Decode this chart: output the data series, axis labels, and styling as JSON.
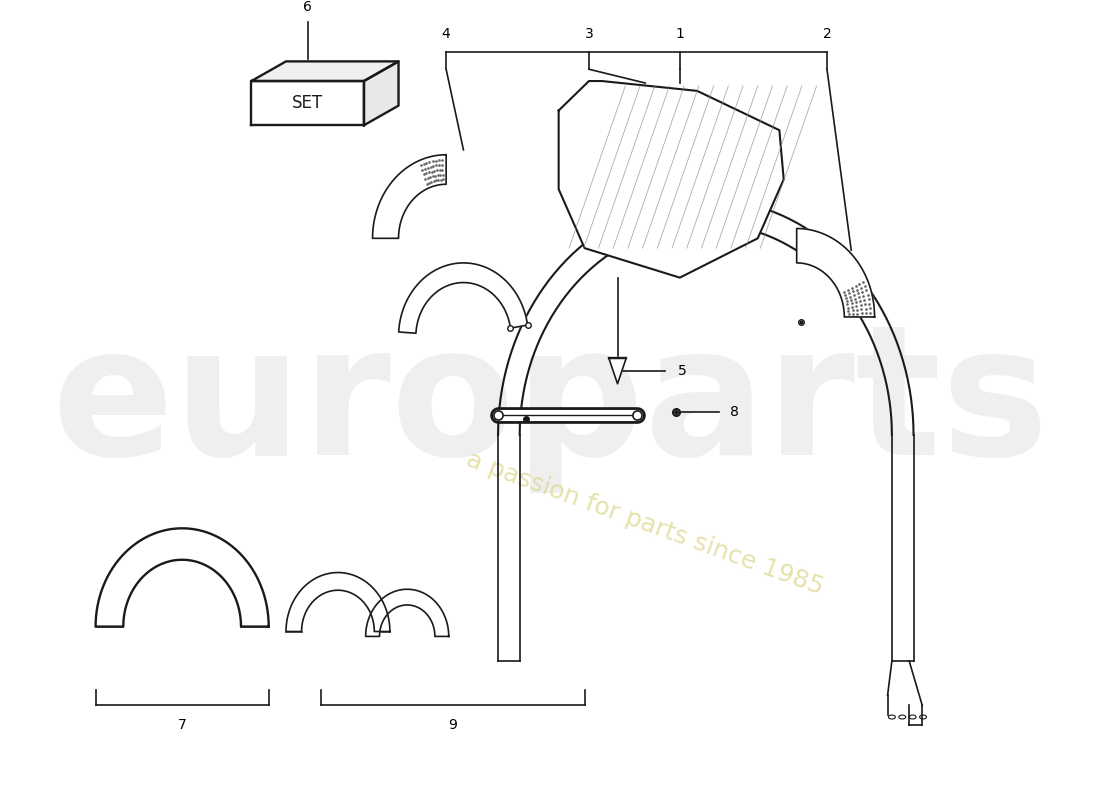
{
  "background_color": "#ffffff",
  "line_color": "#1a1a1a",
  "watermark1": "europarts",
  "watermark2": "a passion for parts since 1985",
  "set_label": "SET",
  "figsize": [
    11.0,
    8.0
  ],
  "dpi": 100
}
